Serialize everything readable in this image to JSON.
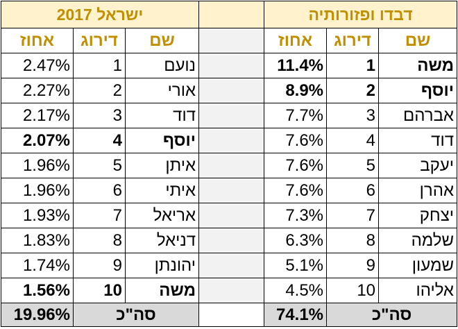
{
  "left_table": {
    "title": "ישראל 2017",
    "headers": {
      "pct": "אחוז",
      "rank": "דירוג",
      "name": "שם"
    },
    "rows": [
      {
        "pct": "2.47%",
        "rank": "1",
        "name": "נועם",
        "bold": false
      },
      {
        "pct": "2.27%",
        "rank": "2",
        "name": "אורי",
        "bold": false
      },
      {
        "pct": "2.17%",
        "rank": "3",
        "name": "דוד",
        "bold": false
      },
      {
        "pct": "2.07%",
        "rank": "4",
        "name": "יוסף",
        "bold": true
      },
      {
        "pct": "1.96%",
        "rank": "5",
        "name": "איתן",
        "bold": false
      },
      {
        "pct": "1.96%",
        "rank": "6",
        "name": "איתי",
        "bold": false
      },
      {
        "pct": "1.93%",
        "rank": "7",
        "name": "אריאל",
        "bold": false
      },
      {
        "pct": "1.83%",
        "rank": "8",
        "name": "דניאל",
        "bold": false
      },
      {
        "pct": "1.74%",
        "rank": "9",
        "name": "יהונתן",
        "bold": false
      },
      {
        "pct": "1.56%",
        "rank": "10",
        "name": "משה",
        "bold": true
      }
    ],
    "total": {
      "pct": "19.96%",
      "label": "סה\"כ"
    }
  },
  "right_table": {
    "title": "דבדו ופזורותיה",
    "headers": {
      "pct": "אחוז",
      "rank": "דירוג",
      "name": "שם"
    },
    "rows": [
      {
        "pct": "11.4%",
        "rank": "1",
        "name": "משה",
        "bold": true
      },
      {
        "pct": "8.9%",
        "rank": "2",
        "name": "יוסף",
        "bold": true
      },
      {
        "pct": "7.7%",
        "rank": "3",
        "name": "אברהם",
        "bold": false
      },
      {
        "pct": "7.6%",
        "rank": "4",
        "name": "דוד",
        "bold": false
      },
      {
        "pct": "7.6%",
        "rank": "5",
        "name": "יעקב",
        "bold": false
      },
      {
        "pct": "7.6%",
        "rank": "6",
        "name": "אהרן",
        "bold": false
      },
      {
        "pct": "7.3%",
        "rank": "7",
        "name": "יצחק",
        "bold": false
      },
      {
        "pct": "6.3%",
        "rank": "8",
        "name": "שלמה",
        "bold": false
      },
      {
        "pct": "5.1%",
        "rank": "9",
        "name": "שמעון",
        "bold": false
      },
      {
        "pct": "4.5%",
        "rank": "10",
        "name": "אליהו",
        "bold": false
      }
    ],
    "total": {
      "pct": "74.1%",
      "label": "סה\"כ"
    }
  },
  "colors": {
    "title_bg": "#fff2cc",
    "title_fg": "#bf8f00",
    "gap_bg": "#f2f2f2",
    "total_bg": "#d9d9d9"
  }
}
